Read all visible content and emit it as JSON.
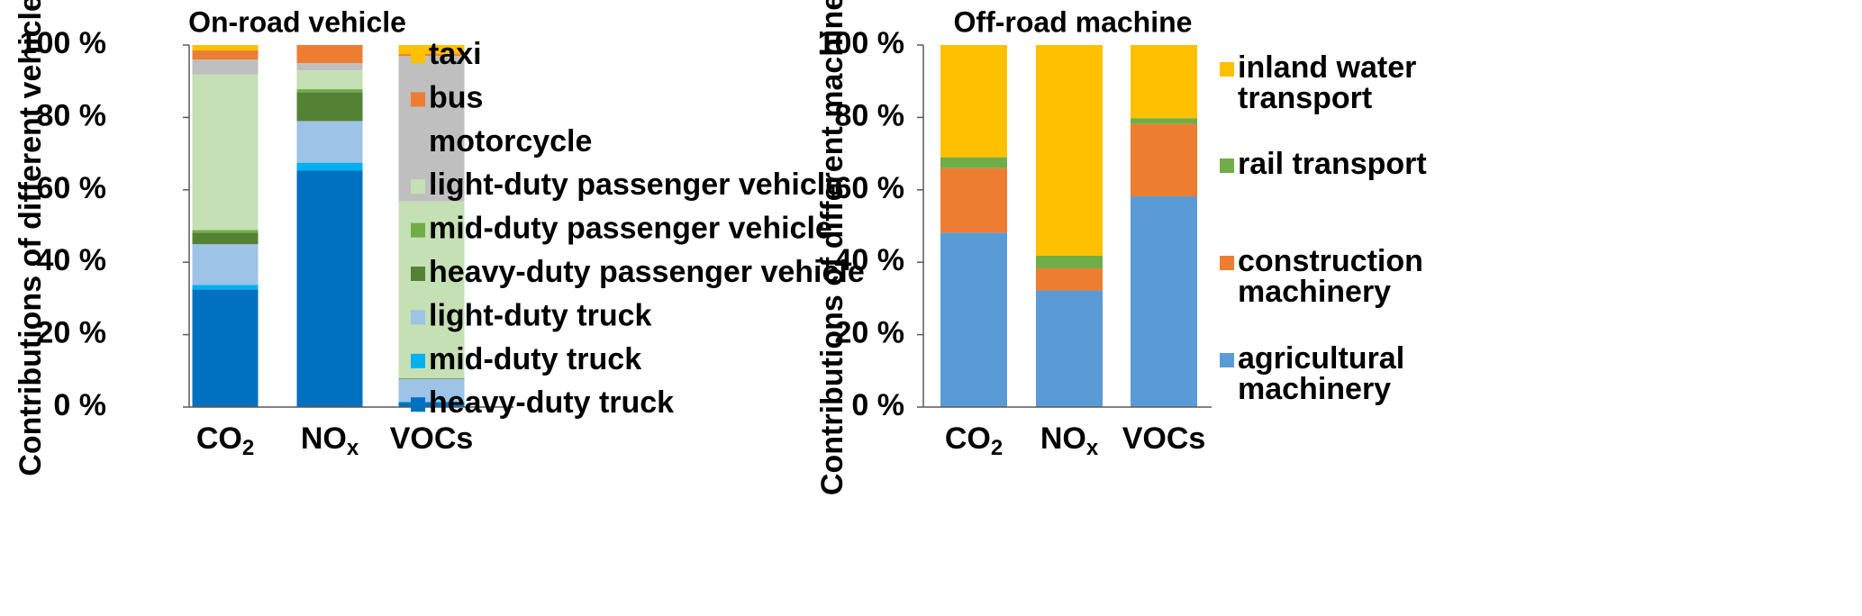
{
  "chart_data": [
    {
      "type": "bar",
      "stacked": true,
      "title": "On-road vehicle",
      "ylabel": "Contributions of different vehicles",
      "ylim": [
        0,
        100
      ],
      "yticks": [
        "0 %",
        "20 %",
        "40 %",
        "60 %",
        "80 %",
        "100 %"
      ],
      "categories": [
        {
          "main": "CO",
          "sub": "2",
          "sub_style": "subscript"
        },
        {
          "main": "NO",
          "sub": "x",
          "sub_style": "subscript"
        },
        {
          "main": "VOCs",
          "sub": "",
          "sub_style": "none"
        }
      ],
      "legend_position": "right",
      "series": [
        {
          "name": "heavy-duty truck",
          "color": "#0070C0",
          "values": [
            32.5,
            65.3,
            1.3
          ]
        },
        {
          "name": "mid-duty truck",
          "color": "#00B0F0",
          "values": [
            1.2,
            2.2,
            0.2
          ]
        },
        {
          "name": "light-duty truck",
          "color": "#9DC3E6",
          "values": [
            11.3,
            11.5,
            6.2
          ]
        },
        {
          "name": "heavy-duty passenger vehicle",
          "color": "#548235",
          "values": [
            3.2,
            8.0,
            0.1
          ]
        },
        {
          "name": "mid-duty passenger vehicle",
          "color": "#70AD47",
          "values": [
            0.7,
            0.8,
            0.2
          ]
        },
        {
          "name": "light-duty passenger vehicle",
          "color": "#C5E0B4",
          "values": [
            43.0,
            5.2,
            48.8
          ]
        },
        {
          "name": "motorcycle",
          "color": "#BFBFBF",
          "values": [
            4.1,
            2.0,
            40.2
          ]
        },
        {
          "name": "bus",
          "color": "#ED7D31",
          "values": [
            2.5,
            5.0,
            0.5
          ]
        },
        {
          "name": "taxi",
          "color": "#FFC000",
          "values": [
            1.5,
            0.0,
            2.5
          ]
        }
      ]
    },
    {
      "type": "bar",
      "stacked": true,
      "title": "Off-road machine",
      "ylabel": "Contributions of different machines",
      "ylim": [
        0,
        100
      ],
      "yticks": [
        "0 %",
        "20 %",
        "40 %",
        "60 %",
        "80 %",
        "100 %"
      ],
      "categories": [
        {
          "main": "CO",
          "sub": "2",
          "sub_style": "subscript"
        },
        {
          "main": "NO",
          "sub": "x",
          "sub_style": "subscript"
        },
        {
          "main": "VOCs",
          "sub": "",
          "sub_style": "none"
        }
      ],
      "legend_position": "right",
      "series": [
        {
          "name": "agricultural machinery",
          "legend_lines": [
            "agricultural",
            "machinery"
          ],
          "color": "#5B9BD5",
          "values": [
            48.2,
            32.2,
            58.2
          ]
        },
        {
          "name": "construction machinery",
          "legend_lines": [
            "construction",
            "machinery"
          ],
          "color": "#ED7D31",
          "values": [
            17.8,
            6.1,
            20.0
          ]
        },
        {
          "name": "rail transport",
          "legend_lines": [
            "rail transport"
          ],
          "color": "#70AD47",
          "values": [
            3.0,
            3.5,
            1.6
          ]
        },
        {
          "name": "inland water transport",
          "legend_lines": [
            "inland water",
            "transport"
          ],
          "color": "#FFC000",
          "values": [
            31.0,
            58.2,
            20.2
          ]
        }
      ]
    }
  ]
}
